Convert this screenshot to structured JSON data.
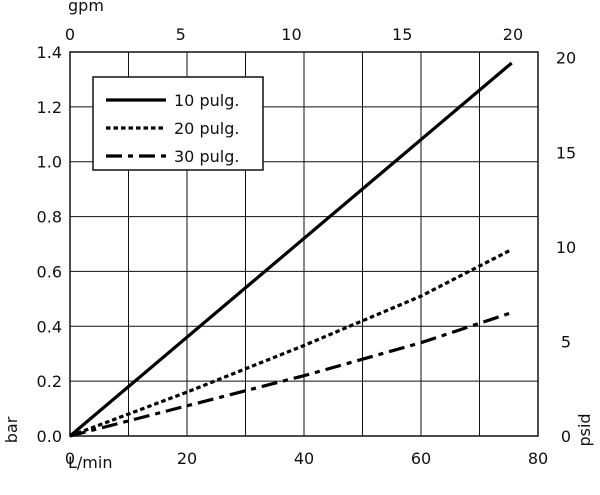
{
  "chart_data": {
    "type": "line",
    "x": {
      "label": "L/min",
      "lim": [
        0,
        80
      ],
      "ticks": [
        0,
        20,
        40,
        60,
        80
      ]
    },
    "x_top": {
      "label": "gpm",
      "lim": [
        0,
        21.13
      ],
      "ticks": [
        0,
        5,
        10,
        15,
        20
      ]
    },
    "y_left": {
      "label": "bar",
      "lim": [
        0,
        1.4
      ],
      "ticks": [
        "0.0",
        "0.2",
        "0.4",
        "0.6",
        "0.8",
        "1.0",
        "1.2",
        "1.4"
      ]
    },
    "y_right": {
      "label": "psid",
      "lim": [
        0,
        20.3
      ],
      "ticks": [
        0,
        5,
        10,
        15,
        20
      ]
    },
    "grid": true,
    "legend_position": "top-left",
    "series": [
      {
        "name": "10 pulg.",
        "style": "solid",
        "x": [
          0,
          75.5
        ],
        "y": [
          0,
          1.36
        ]
      },
      {
        "name": "20 pulg.",
        "style": "dotted",
        "x": [
          0,
          20,
          40,
          60,
          75.5
        ],
        "y": [
          0,
          0.16,
          0.33,
          0.51,
          0.68
        ]
      },
      {
        "name": "30 pulg.",
        "style": "dashdot",
        "x": [
          0,
          20,
          40,
          60,
          75.5
        ],
        "y": [
          0,
          0.11,
          0.22,
          0.34,
          0.45
        ]
      }
    ]
  }
}
